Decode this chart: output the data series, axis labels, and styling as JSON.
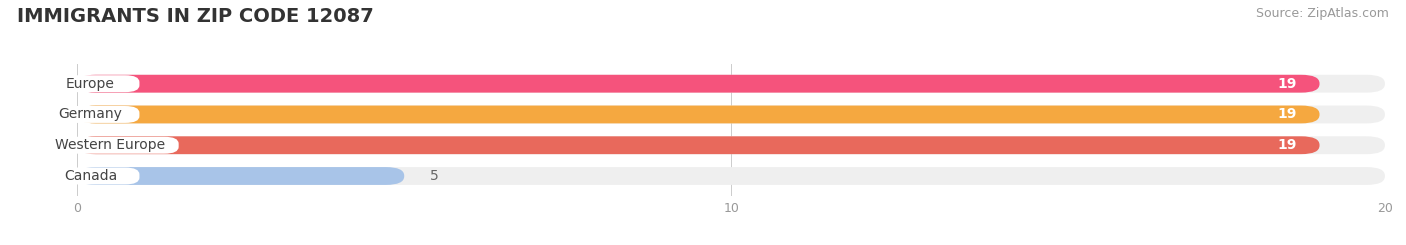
{
  "title": "IMMIGRANTS IN ZIP CODE 12087",
  "source": "Source: ZipAtlas.com",
  "categories": [
    "Europe",
    "Germany",
    "Western Europe",
    "Canada"
  ],
  "values": [
    19,
    19,
    19,
    5
  ],
  "bar_colors": [
    "#F5537C",
    "#F5A840",
    "#E8695C",
    "#A8C4E8"
  ],
  "bar_bg_color": "#EFEFEF",
  "label_bg_color": "#FFFFFF",
  "xlim": [
    0,
    20
  ],
  "xticks": [
    0,
    10,
    20
  ],
  "bar_height": 0.58,
  "title_fontsize": 14,
  "label_fontsize": 10,
  "value_fontsize": 10,
  "source_fontsize": 9,
  "background_color": "#FFFFFF",
  "label_text_color": "#444444",
  "value_text_color": "#FFFFFF",
  "canada_value_color": "#666666"
}
